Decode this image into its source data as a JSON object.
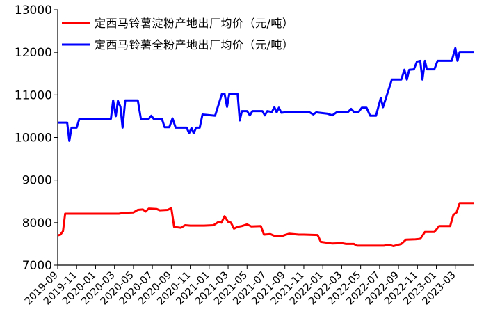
{
  "chart_data": {
    "type": "line",
    "title": "",
    "xlabel": "",
    "ylabel": "",
    "ylim": [
      7000,
      13000
    ],
    "yticks": [
      7000,
      8000,
      9000,
      10000,
      11000,
      12000,
      13000
    ],
    "xlim": [
      "2019-09",
      "2023-05"
    ],
    "xticks": [
      "2019-09",
      "2019-11",
      "2020-01",
      "2020-03",
      "2020-05",
      "2020-07",
      "2020-09",
      "2020-11",
      "2021-01",
      "2021-03",
      "2021-05",
      "2021-07",
      "2021-09",
      "2021-11",
      "2022-01",
      "2022-03",
      "2022-05",
      "2022-07",
      "2022-09",
      "2022-11",
      "2023-01",
      "2023-03"
    ],
    "grid": false,
    "legend_position": "top-left",
    "series": [
      {
        "name": "定西马铃薯淀粉产地出厂均价（元/吨）",
        "color": "#ff0000",
        "points": [
          [
            "2019-09-01",
            7700
          ],
          [
            "2019-09-10",
            7720
          ],
          [
            "2019-09-18",
            7800
          ],
          [
            "2019-09-25",
            8210
          ],
          [
            "2019-12-01",
            8210
          ],
          [
            "2020-03-15",
            8210
          ],
          [
            "2020-04-01",
            8230
          ],
          [
            "2020-05-01",
            8240
          ],
          [
            "2020-05-15",
            8300
          ],
          [
            "2020-06-01",
            8310
          ],
          [
            "2020-06-10",
            8260
          ],
          [
            "2020-06-20",
            8330
          ],
          [
            "2020-07-15",
            8320
          ],
          [
            "2020-07-25",
            8290
          ],
          [
            "2020-08-20",
            8300
          ],
          [
            "2020-09-01",
            8340
          ],
          [
            "2020-09-10",
            7900
          ],
          [
            "2020-10-01",
            7880
          ],
          [
            "2020-10-15",
            7940
          ],
          [
            "2020-11-01",
            7930
          ],
          [
            "2020-12-15",
            7930
          ],
          [
            "2021-01-15",
            7940
          ],
          [
            "2021-02-01",
            8020
          ],
          [
            "2021-02-10",
            8000
          ],
          [
            "2021-02-20",
            8150
          ],
          [
            "2021-03-01",
            8020
          ],
          [
            "2021-03-10",
            8000
          ],
          [
            "2021-03-20",
            7860
          ],
          [
            "2021-04-01",
            7900
          ],
          [
            "2021-04-15",
            7920
          ],
          [
            "2021-05-01",
            7960
          ],
          [
            "2021-05-15",
            7910
          ],
          [
            "2021-06-15",
            7920
          ],
          [
            "2021-06-25",
            7720
          ],
          [
            "2021-07-15",
            7730
          ],
          [
            "2021-08-01",
            7680
          ],
          [
            "2021-08-20",
            7680
          ],
          [
            "2021-09-01",
            7710
          ],
          [
            "2021-09-15",
            7740
          ],
          [
            "2021-10-15",
            7720
          ],
          [
            "2021-11-01",
            7720
          ],
          [
            "2021-12-15",
            7710
          ],
          [
            "2021-12-25",
            7550
          ],
          [
            "2022-02-01",
            7510
          ],
          [
            "2022-03-01",
            7520
          ],
          [
            "2022-03-15",
            7500
          ],
          [
            "2022-04-10",
            7500
          ],
          [
            "2022-04-20",
            7460
          ],
          [
            "2022-07-15",
            7460
          ],
          [
            "2022-08-01",
            7480
          ],
          [
            "2022-08-15",
            7450
          ],
          [
            "2022-09-10",
            7500
          ],
          [
            "2022-09-25",
            7600
          ],
          [
            "2022-10-25",
            7610
          ],
          [
            "2022-11-10",
            7620
          ],
          [
            "2022-11-25",
            7780
          ],
          [
            "2022-12-25",
            7780
          ],
          [
            "2023-01-10",
            7920
          ],
          [
            "2023-02-15",
            7920
          ],
          [
            "2023-02-25",
            8180
          ],
          [
            "2023-03-05",
            8240
          ],
          [
            "2023-03-15",
            8460
          ],
          [
            "2023-05-01",
            8460
          ]
        ]
      },
      {
        "name": "定西马铃薯全粉产地出厂均价（元/吨）",
        "color": "#0000ff",
        "points": [
          [
            "2019-09-01",
            10350
          ],
          [
            "2019-10-01",
            10350
          ],
          [
            "2019-10-08",
            9920
          ],
          [
            "2019-10-15",
            10230
          ],
          [
            "2019-11-01",
            10230
          ],
          [
            "2019-11-10",
            10440
          ],
          [
            "2020-01-01",
            10440
          ],
          [
            "2020-02-20",
            10440
          ],
          [
            "2020-02-27",
            10870
          ],
          [
            "2020-03-05",
            10500
          ],
          [
            "2020-03-12",
            10860
          ],
          [
            "2020-03-20",
            10720
          ],
          [
            "2020-03-27",
            10230
          ],
          [
            "2020-04-05",
            10870
          ],
          [
            "2020-05-15",
            10870
          ],
          [
            "2020-05-25",
            10440
          ],
          [
            "2020-06-20",
            10440
          ],
          [
            "2020-06-28",
            10510
          ],
          [
            "2020-07-05",
            10440
          ],
          [
            "2020-08-01",
            10440
          ],
          [
            "2020-08-10",
            10240
          ],
          [
            "2020-08-25",
            10240
          ],
          [
            "2020-09-05",
            10450
          ],
          [
            "2020-09-15",
            10230
          ],
          [
            "2020-10-20",
            10230
          ],
          [
            "2020-10-28",
            10100
          ],
          [
            "2020-11-05",
            10220
          ],
          [
            "2020-11-12",
            10100
          ],
          [
            "2020-11-20",
            10230
          ],
          [
            "2020-12-01",
            10230
          ],
          [
            "2020-12-10",
            10540
          ],
          [
            "2021-01-20",
            10510
          ],
          [
            "2021-02-05",
            10870
          ],
          [
            "2021-02-12",
            11030
          ],
          [
            "2021-02-20",
            11030
          ],
          [
            "2021-02-28",
            10720
          ],
          [
            "2021-03-05",
            11030
          ],
          [
            "2021-04-01",
            11020
          ],
          [
            "2021-04-08",
            10400
          ],
          [
            "2021-04-15",
            10620
          ],
          [
            "2021-05-01",
            10620
          ],
          [
            "2021-05-10",
            10520
          ],
          [
            "2021-05-18",
            10620
          ],
          [
            "2021-06-20",
            10620
          ],
          [
            "2021-06-28",
            10520
          ],
          [
            "2021-07-05",
            10620
          ],
          [
            "2021-07-20",
            10600
          ],
          [
            "2021-07-28",
            10710
          ],
          [
            "2021-08-05",
            10590
          ],
          [
            "2021-08-12",
            10700
          ],
          [
            "2021-08-20",
            10580
          ],
          [
            "2021-09-01",
            10590
          ],
          [
            "2021-10-01",
            10590
          ],
          [
            "2021-10-20",
            10590
          ],
          [
            "2021-11-20",
            10590
          ],
          [
            "2021-12-01",
            10540
          ],
          [
            "2021-12-10",
            10590
          ],
          [
            "2022-01-15",
            10560
          ],
          [
            "2022-02-01",
            10520
          ],
          [
            "2022-02-15",
            10590
          ],
          [
            "2022-03-20",
            10590
          ],
          [
            "2022-04-01",
            10670
          ],
          [
            "2022-04-10",
            10600
          ],
          [
            "2022-04-25",
            10600
          ],
          [
            "2022-05-05",
            10700
          ],
          [
            "2022-05-20",
            10700
          ],
          [
            "2022-06-01",
            10510
          ],
          [
            "2022-06-20",
            10510
          ],
          [
            "2022-07-05",
            10930
          ],
          [
            "2022-07-12",
            10710
          ],
          [
            "2022-08-10",
            11360
          ],
          [
            "2022-09-10",
            11360
          ],
          [
            "2022-09-20",
            11590
          ],
          [
            "2022-09-28",
            11360
          ],
          [
            "2022-10-05",
            11590
          ],
          [
            "2022-10-20",
            11600
          ],
          [
            "2022-10-30",
            11780
          ],
          [
            "2022-11-10",
            11800
          ],
          [
            "2022-11-17",
            11360
          ],
          [
            "2022-11-25",
            11800
          ],
          [
            "2022-12-01",
            11600
          ],
          [
            "2022-12-25",
            11600
          ],
          [
            "2023-01-05",
            11800
          ],
          [
            "2023-02-20",
            11800
          ],
          [
            "2023-03-01",
            12100
          ],
          [
            "2023-03-08",
            11800
          ],
          [
            "2023-03-15",
            12010
          ],
          [
            "2023-05-01",
            12010
          ]
        ]
      }
    ]
  }
}
